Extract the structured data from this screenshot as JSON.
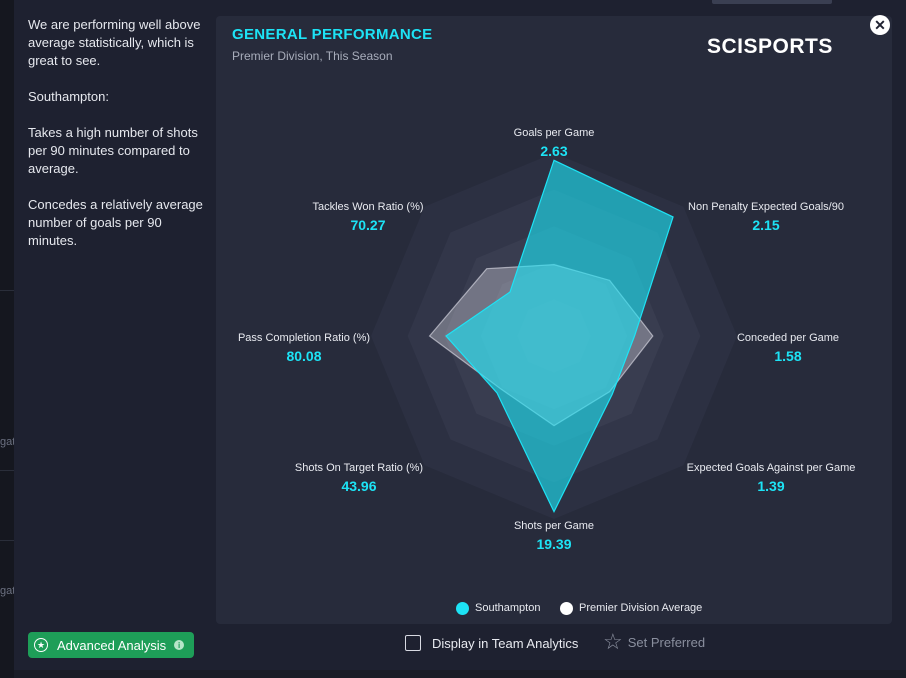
{
  "background": {
    "fragments": [
      "gat",
      "gat"
    ]
  },
  "sidebar": {
    "summary": [
      "We are performing well above average statistically, which is great to see.",
      "Southampton:",
      "Takes a high number of shots per 90 minutes compared to average.",
      "Concedes a relatively average number of goals per 90 minutes."
    ],
    "advanced_button": {
      "label": "Advanced Analysis",
      "icon": "star-circle-icon",
      "info_icon": "info-icon"
    }
  },
  "card": {
    "title": "GENERAL PERFORMANCE",
    "subtitle": "Premier Division, This Season",
    "logo": "SCISPORTS"
  },
  "close_button": {
    "icon": "close-icon"
  },
  "chart_data": {
    "type": "radar",
    "axes": [
      {
        "label": "Goals per Game",
        "value": "2.63"
      },
      {
        "label": "Non Penalty Expected Goals/90",
        "value": "2.15"
      },
      {
        "label": "Conceded per Game",
        "value": "1.58"
      },
      {
        "label": "Expected Goals Against per Game",
        "value": "1.39"
      },
      {
        "label": "Shots per Game",
        "value": "19.39"
      },
      {
        "label": "Shots On Target Ratio (%)",
        "value": "43.96"
      },
      {
        "label": "Pass Completion Ratio (%)",
        "value": "80.08"
      },
      {
        "label": "Tackles Won Ratio (%)",
        "value": "70.27"
      }
    ],
    "rings": 5,
    "series": [
      {
        "name": "Southampton",
        "color": "#1de3f5",
        "relative": [
          0.96,
          0.92,
          0.44,
          0.45,
          0.96,
          0.44,
          0.59,
          0.34
        ]
      },
      {
        "name": "Premier Division Average",
        "color": "#ffffff",
        "relative": [
          0.39,
          0.43,
          0.54,
          0.43,
          0.49,
          0.41,
          0.68,
          0.52
        ]
      }
    ],
    "legend_position": "bottom"
  },
  "footer": {
    "display_label": "Display in Team Analytics",
    "preferred_label": "Set Preferred",
    "preferred_icon": "star-outline-icon"
  }
}
